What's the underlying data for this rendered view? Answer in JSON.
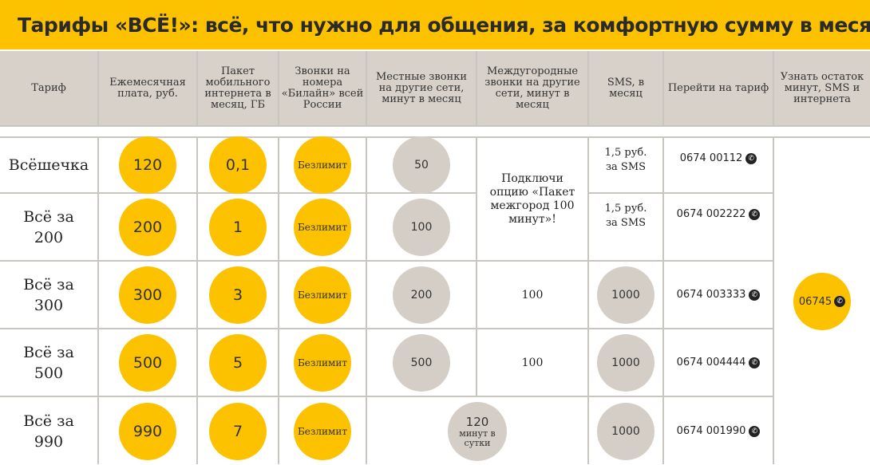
{
  "title": "Тарифы «ВСЁ!»: всё, что нужно для общения, за комфортную сумму в месяц",
  "headers": [
    "Тариф",
    "Ежемесячная плата, руб.",
    "Пакет мобильного интернета в месяц, ГБ",
    "Звонки на номера «Билайн» всей России",
    "Местные звонки на другие сети, минут в месяц",
    "Междугородные звонки на другие сети, минут в месяц",
    "SMS, в месяц",
    "Перейти на тариф",
    "Узнать остаток минут, SMS и интернета"
  ],
  "rows": [
    {
      "name": "Всёшечка",
      "fee": "120",
      "gb": "0,1",
      "beeline": "Безлимит",
      "local": "50",
      "sms": "1,5 руб. за SMS",
      "code": "0674 00112"
    },
    {
      "name": "Всё за 200",
      "fee": "200",
      "gb": "1",
      "beeline": "Безлимит",
      "local": "100",
      "sms": "1,5 руб. за SMS",
      "code": "0674 002222"
    },
    {
      "name": "Всё за 300",
      "fee": "300",
      "gb": "3",
      "beeline": "Безлимит",
      "local": "200",
      "intercity": "100",
      "sms": "1000",
      "code": "0674 003333"
    },
    {
      "name": "Всё за 500",
      "fee": "500",
      "gb": "5",
      "beeline": "Безлимит",
      "local": "500",
      "intercity": "100",
      "sms": "1000",
      "code": "0674 004444"
    },
    {
      "name": "Всё за 990",
      "fee": "990",
      "gb": "7",
      "beeline": "Безлимит",
      "sms": "1000",
      "code": "0674 001990"
    }
  ],
  "intercity_option": "Подключи опцию «Пакет межгород 100 минут»!",
  "row5_calls": {
    "value": "120",
    "unit": "минут в сутки"
  },
  "balance_code": "06745",
  "phone_icon": "phone-icon"
}
